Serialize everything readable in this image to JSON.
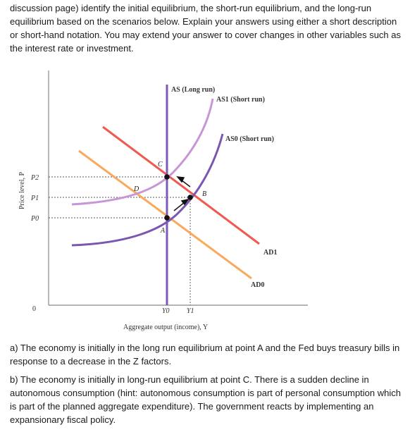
{
  "intro_text": "discussion page) identify the initial equilibrium, the short-run equilibrium, and the long-run equilibrium based on the scenarios below. Explain your answers using either a short description or short-hand notation. You may extend your answer to cover changes in other variables such as the interest rate or investment.",
  "figure": {
    "y_axis_label": "Price level, P",
    "x_axis_label": "Aggregate output (income), Y",
    "origin_label": "0",
    "y_ticks": [
      "P2",
      "P1",
      "P0"
    ],
    "x_ticks": [
      "Y0",
      "Y1"
    ],
    "curves": {
      "as_long_run": "AS (Long run)",
      "as1_short_run": "AS1 (Short run)",
      "as0_short_run": "AS0 (Short run)",
      "ad1": "AD1",
      "ad0": "AD0"
    },
    "points": [
      "A",
      "B",
      "C",
      "D"
    ],
    "colors": {
      "as_long_run": "#7d5ab8",
      "as1_short_run": "#c896d6",
      "as0_short_run": "#7a57b0",
      "ad1": "#ee5a4f",
      "ad0": "#f9a85c",
      "axis": "#888888"
    }
  },
  "question_a": "a) The economy is initially in the long run equilibrium at point A and the Fed buys treasury bills in response to a decrease in the Z factors.",
  "question_b": "b) The economy is initially in long-run equilibrium at point C. There is a sudden decline in autonomous consumption (hint: autonomous consumption is part of personal consumption which is part of the planned aggregate expenditure). The government reacts by implementing an expansionary fiscal policy."
}
